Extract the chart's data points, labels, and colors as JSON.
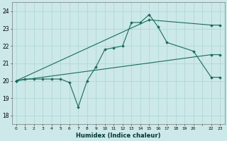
{
  "xlabel": "Humidex (Indice chaleur)",
  "xlim": [
    -0.5,
    23.5
  ],
  "ylim": [
    17.5,
    24.5
  ],
  "yticks": [
    18,
    19,
    20,
    21,
    22,
    23,
    24
  ],
  "xticks": [
    0,
    1,
    2,
    3,
    4,
    5,
    6,
    7,
    8,
    9,
    10,
    11,
    12,
    13,
    14,
    15,
    16,
    17,
    18,
    19,
    20,
    21,
    22,
    23
  ],
  "xtick_labels": [
    "0",
    "1",
    "2",
    "3",
    "4",
    "5",
    "6",
    "7",
    "8",
    "9",
    "10",
    "11",
    "12",
    "13",
    "14",
    "15",
    "16",
    "17",
    "18",
    "19",
    "20",
    "",
    "22",
    "23"
  ],
  "bg_color": "#cce8e8",
  "grid_color": "#aad4d4",
  "line_color": "#1a6b60",
  "line1_x": [
    0,
    1,
    2,
    3,
    4,
    5,
    6,
    7,
    8,
    9,
    10,
    11,
    12,
    13,
    14,
    15,
    16,
    17,
    20,
    22,
    23
  ],
  "line1_y": [
    20.0,
    20.1,
    20.1,
    20.1,
    20.1,
    20.1,
    19.9,
    18.5,
    20.0,
    20.8,
    21.8,
    21.9,
    22.0,
    23.35,
    23.35,
    23.8,
    23.1,
    22.2,
    21.7,
    20.2,
    20.2
  ],
  "line2_x": [
    0,
    15,
    22,
    23
  ],
  "line2_y": [
    20.0,
    23.5,
    23.2,
    23.2
  ],
  "line3_x": [
    0,
    22,
    23
  ],
  "line3_y": [
    20.0,
    21.5,
    21.5
  ],
  "marker": "D",
  "markersize": 2.0,
  "linewidth": 0.8
}
